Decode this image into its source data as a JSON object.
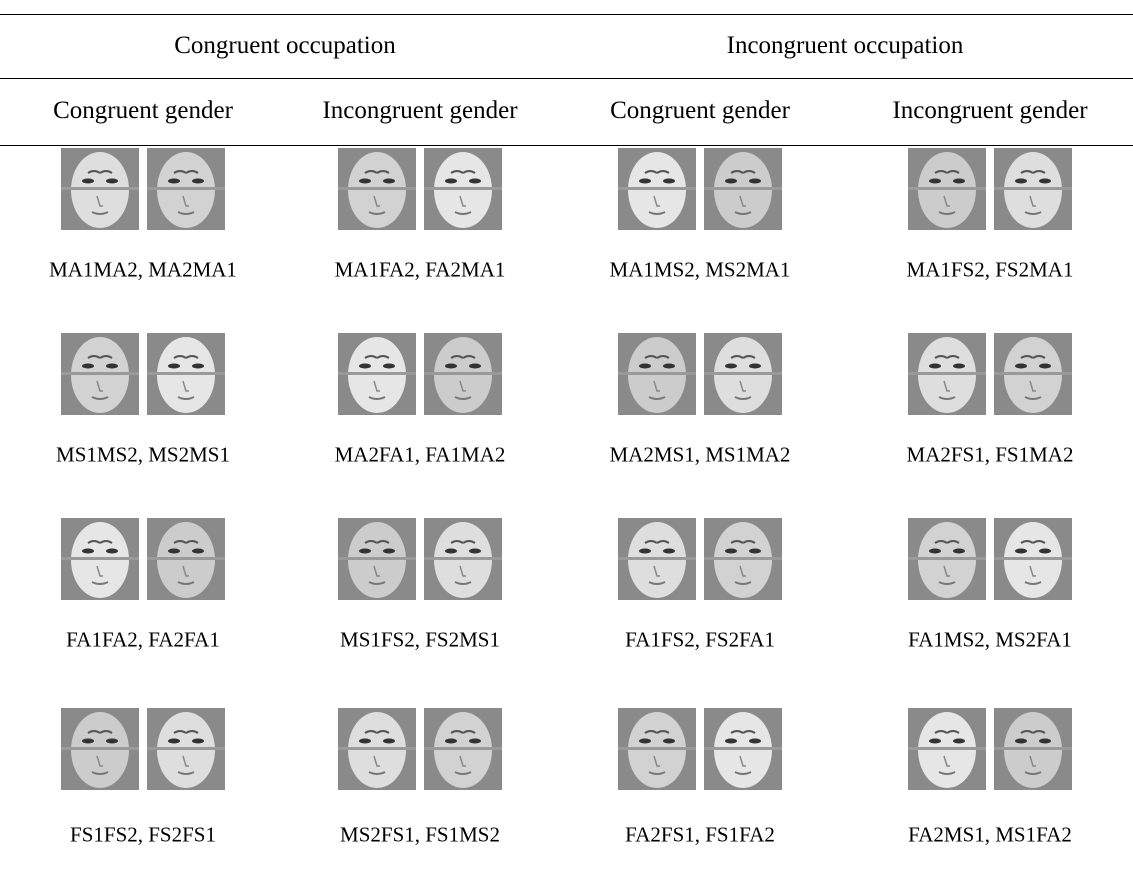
{
  "table": {
    "groups": [
      "Congruent occupation",
      "Incongruent occupation"
    ],
    "columns": [
      "Congruent gender",
      "Incongruent gender",
      "Congruent gender",
      "Incongruent gender"
    ],
    "rows": [
      [
        "MA1MA2, MA2MA1",
        "MA1FA2, FA2MA1",
        "MA1MS2, MS2MA1",
        "MA1FS2, FS2MA1"
      ],
      [
        "MS1MS2, MS2MS1",
        "MA2FA1, FA1MA2",
        "MA2MS1, MS1MA2",
        "MA2FS1, FS1MA2"
      ],
      [
        "FA1FA2, FA2FA1",
        "MS1FS2, FS2MS1",
        "FA1FS2, FS2FA1",
        "FA1MS2, MS2FA1"
      ],
      [
        "FS1FS2, FS2FS1",
        "MS2FS1, FS1MS2",
        "FA2FS1, FS1FA2",
        "FA2MS1, MS1FA2"
      ]
    ]
  }
}
